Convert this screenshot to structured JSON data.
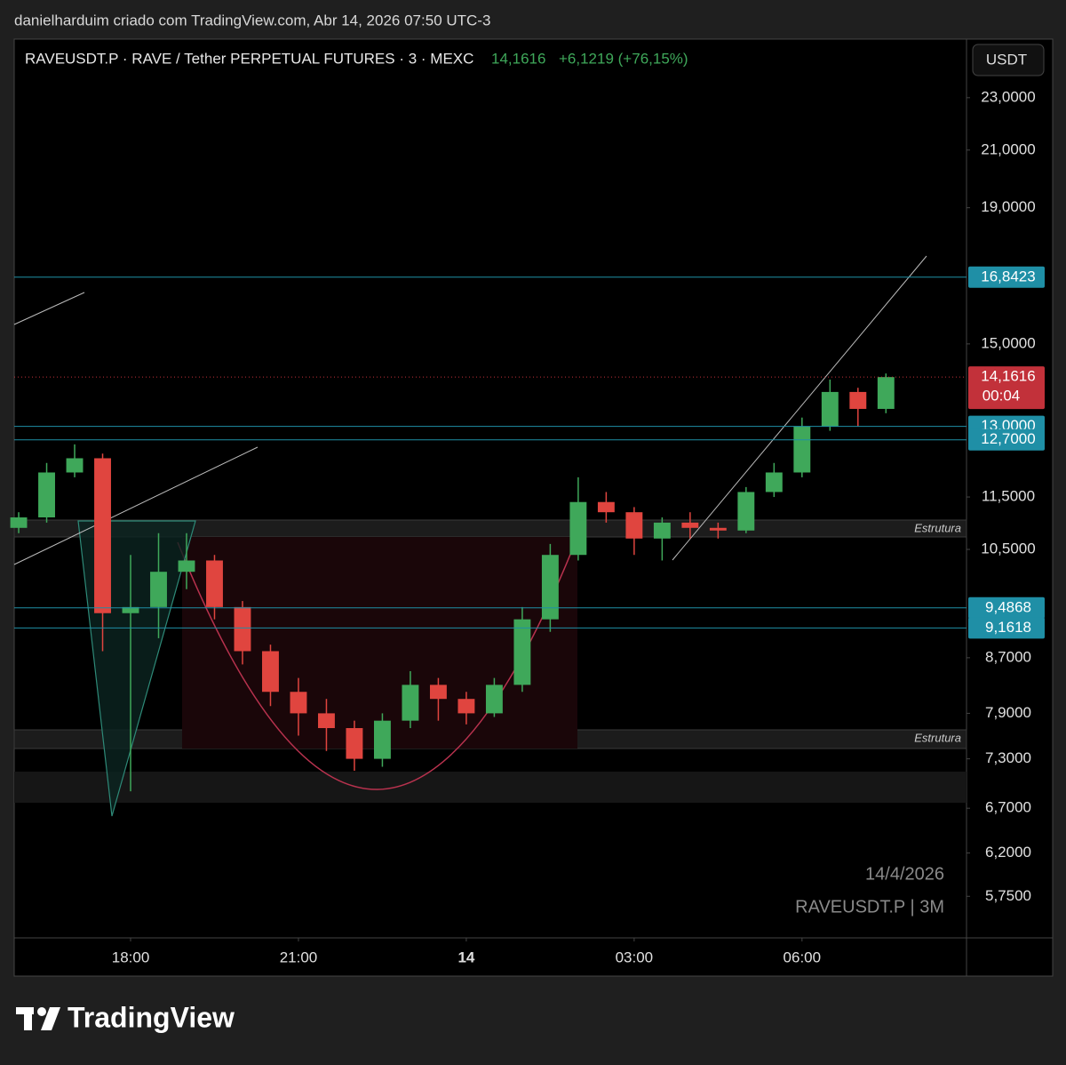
{
  "header": {
    "attribution": "danielharduim criado com TradingView.com, Abr 14, 2026 07:50 UTC-3"
  },
  "chart_data": {
    "type": "candlestick",
    "title": "RAVEUSDT.P · RAVE / Tether PERPETUAL FUTURES · 3 · MEXC",
    "last_price": {
      "value": 14.1616,
      "label": "14,1616"
    },
    "change": "+6,1219 (+76,15%)",
    "currency": "USDT",
    "countdown": "00:04",
    "date_watermark": "14/4/2026",
    "symbol_watermark": "RAVEUSDT.P | 3M",
    "annotations": [
      "Estrutura",
      "Estrutura"
    ],
    "levels": [
      {
        "value": 16.8423,
        "label": "16,8423"
      },
      {
        "value": 13.0,
        "label": "13,0000"
      },
      {
        "value": 12.7,
        "label": "12,7000"
      },
      {
        "value": 9.4868,
        "label": "9,4868"
      },
      {
        "value": 9.1618,
        "label": "9,1618"
      }
    ],
    "x": [
      16,
      16.5,
      17,
      17.5,
      18,
      18.5,
      19,
      19.5,
      20,
      20.5,
      21,
      21.5,
      22,
      22.5,
      23,
      23.5,
      24,
      24.5,
      25,
      25.5,
      26,
      26.5,
      27,
      27.5,
      28,
      28.5,
      29,
      29.5,
      30,
      30.5,
      31,
      31.5
    ],
    "open": [
      10.9,
      11.1,
      12.0,
      12.3,
      9.4,
      9.5,
      10.1,
      10.3,
      9.5,
      8.8,
      8.2,
      7.9,
      7.7,
      7.3,
      7.8,
      8.3,
      8.1,
      7.9,
      8.3,
      9.3,
      10.4,
      11.4,
      11.2,
      10.7,
      11.0,
      10.9,
      10.85,
      11.6,
      12.0,
      13.0,
      13.8,
      13.4
    ],
    "high": [
      11.2,
      12.2,
      12.6,
      12.4,
      10.4,
      10.8,
      10.8,
      10.4,
      9.6,
      8.9,
      8.4,
      8.1,
      7.8,
      7.9,
      8.5,
      8.4,
      8.2,
      8.4,
      9.5,
      10.6,
      11.9,
      11.6,
      11.3,
      11.1,
      11.2,
      11.0,
      11.7,
      12.2,
      13.2,
      14.1,
      13.9,
      14.25
    ],
    "low": [
      10.8,
      11.0,
      11.9,
      8.8,
      6.9,
      9.0,
      9.8,
      9.3,
      8.6,
      8.0,
      7.6,
      7.4,
      7.15,
      7.2,
      7.7,
      7.8,
      7.75,
      7.85,
      8.2,
      9.1,
      10.3,
      11.0,
      10.4,
      10.3,
      10.7,
      10.7,
      10.8,
      11.5,
      11.9,
      12.9,
      13.0,
      13.3
    ],
    "close": [
      11.1,
      12.0,
      12.3,
      9.4,
      9.5,
      10.1,
      10.3,
      9.5,
      8.8,
      8.2,
      7.9,
      7.7,
      7.3,
      7.8,
      8.3,
      8.1,
      7.9,
      8.3,
      9.3,
      10.4,
      11.4,
      11.2,
      10.7,
      11.0,
      10.9,
      10.85,
      11.6,
      12.0,
      13.0,
      13.8,
      13.4,
      14.1616
    ],
    "up_color": "#3fa85a",
    "down_color": "#e0453f",
    "level_color": "#1f8fa6",
    "last_color": "#c2313a",
    "log_scale": true,
    "xlim": [
      15.92,
      32.94
    ],
    "ylim": [
      5.35,
      25.46
    ],
    "xticks": [
      {
        "value": 18,
        "label": "18:00"
      },
      {
        "value": 21,
        "label": "21:00"
      },
      {
        "value": 24,
        "label": "14"
      },
      {
        "value": 27,
        "label": "03:00"
      },
      {
        "value": 30,
        "label": "06:00"
      }
    ],
    "yticks": [
      {
        "value": 23,
        "label": "23,0000"
      },
      {
        "value": 21,
        "label": "21,0000"
      },
      {
        "value": 19,
        "label": "19,0000"
      },
      {
        "value": 15,
        "label": "15,0000"
      },
      {
        "value": 11.5,
        "label": "11,5000"
      },
      {
        "value": 10.5,
        "label": "10,5000"
      },
      {
        "value": 8.7,
        "label": "8,7000"
      },
      {
        "value": 7.9,
        "label": "7,9000"
      },
      {
        "value": 7.3,
        "label": "7,3000"
      },
      {
        "value": 6.7,
        "label": "6,7000"
      },
      {
        "value": 6.2,
        "label": "6,2000"
      },
      {
        "value": 5.75,
        "label": "5,7500"
      }
    ]
  },
  "footer": {
    "brand": "TradingView"
  }
}
